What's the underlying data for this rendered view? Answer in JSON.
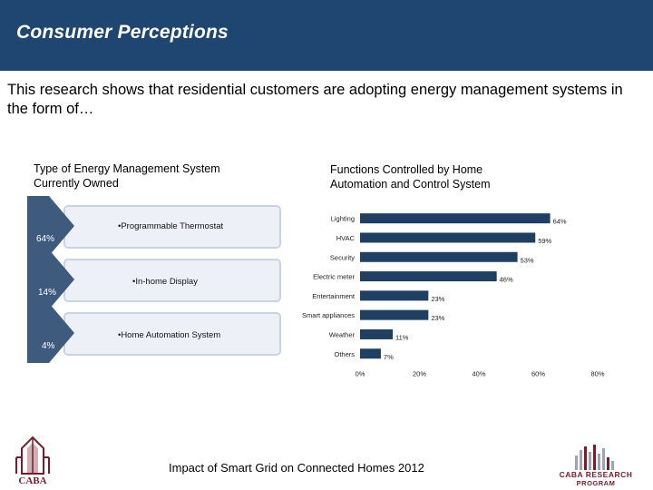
{
  "header": {
    "title": "Consumer Perceptions"
  },
  "intro": "This research shows that residential customers are adopting energy management systems in the form of…",
  "left_panel": {
    "subtitle": "Type of Energy Management System Currently Owned",
    "items": [
      {
        "label": "•Programmable Thermostat",
        "percent": "64%"
      },
      {
        "label": "•In-home Display",
        "percent": "14%"
      },
      {
        "label": "•Home Automation System",
        "percent": "4%"
      }
    ]
  },
  "right_panel": {
    "subtitle": "Functions Controlled by Home Automation and Control System"
  },
  "chart_data": {
    "type": "bar",
    "orientation": "horizontal",
    "categories": [
      "Lighting",
      "HVAC",
      "Security",
      "Electric meter",
      "Entertainment",
      "Smart appliances",
      "Weather",
      "Others"
    ],
    "values": [
      64,
      59,
      53,
      46,
      23,
      23,
      11,
      7
    ],
    "value_labels": [
      "64%",
      "59%",
      "53%",
      "46%",
      "23%",
      "23%",
      "11%",
      "7%"
    ],
    "xlim": [
      0,
      80
    ],
    "xticks": [
      "0%",
      "20%",
      "40%",
      "60%",
      "80%"
    ],
    "grid": false,
    "bar_color": "#1f3f63"
  },
  "footer": {
    "caption": "Impact of Smart Grid on Connected Homes 2012"
  },
  "logos": {
    "left_text": "CABA",
    "right_line1": "CABA RESEARCH",
    "right_line2": "PROGRAM"
  },
  "colors": {
    "header_bg": "#1f4670",
    "chevron": "#3e5b7d",
    "box_bg": "#edf1f7",
    "brand": "#7a1c2b"
  }
}
